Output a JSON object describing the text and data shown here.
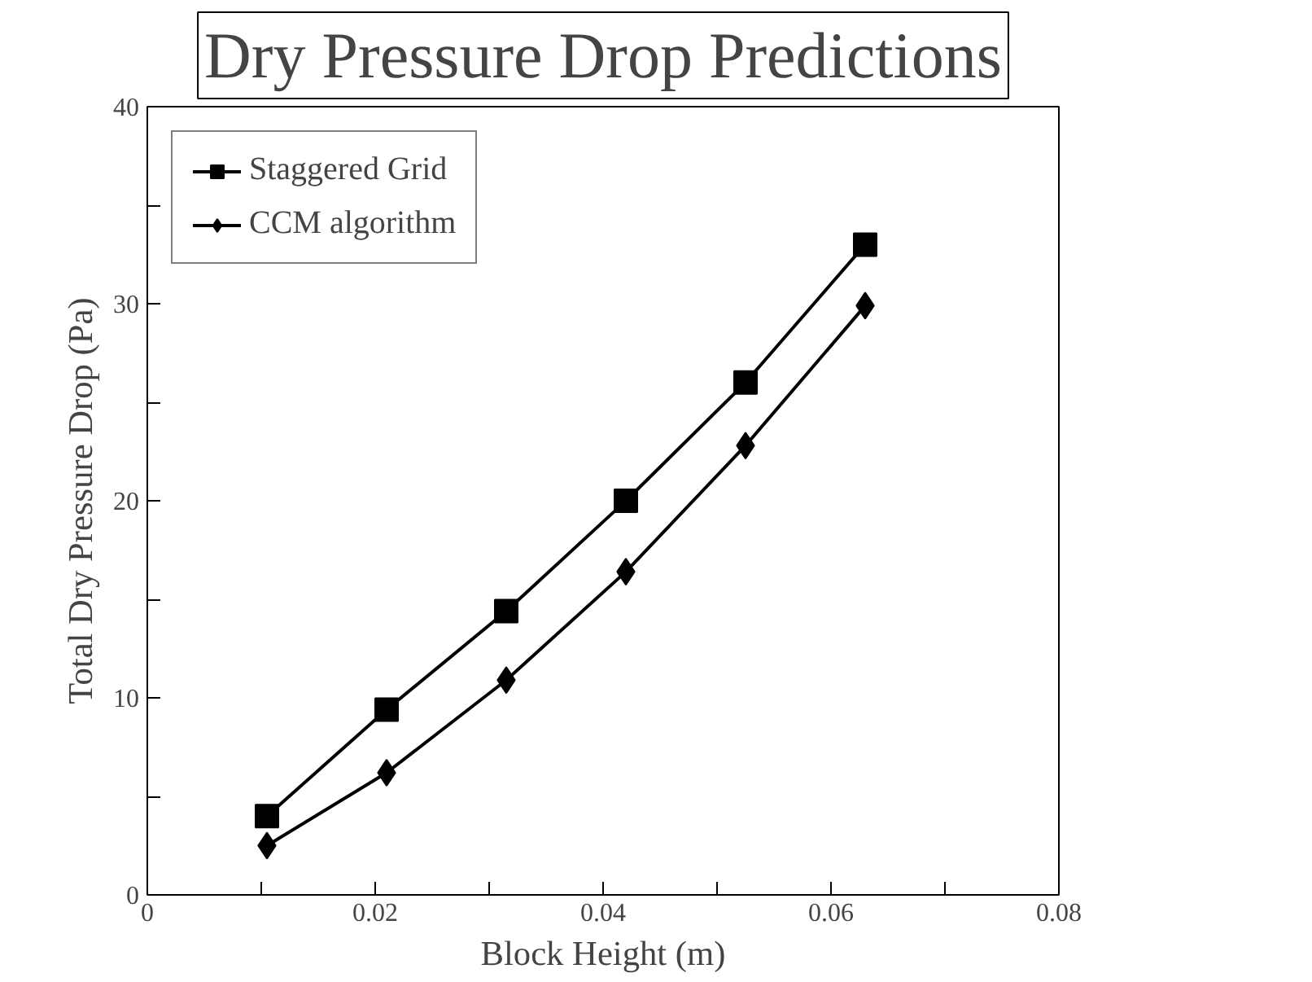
{
  "chart_data": {
    "type": "line",
    "title": "Dry Pressure Drop Predictions",
    "xlabel": "Block Height (m)",
    "ylabel": "Total Dry Pressure Drop (Pa)",
    "x": [
      0.0105,
      0.021,
      0.0315,
      0.042,
      0.0525,
      0.063
    ],
    "series": [
      {
        "name": "Staggered Grid",
        "color": "#000000",
        "marker": "square",
        "values": [
          4.0,
          9.4,
          14.4,
          20.0,
          26.0,
          33.0
        ]
      },
      {
        "name": "CCM algorithm",
        "color": "#000000",
        "marker": "diamond",
        "values": [
          2.5,
          6.2,
          10.9,
          16.4,
          22.8,
          29.9
        ]
      }
    ],
    "xlim": [
      0,
      0.08
    ],
    "xticks": [
      0,
      {
        "value": 0.01,
        "label": null
      },
      0.02,
      {
        "value": 0.03,
        "label": null
      },
      0.04,
      {
        "value": 0.05,
        "label": null
      },
      0.06,
      {
        "value": 0.07,
        "label": null
      },
      0.08
    ],
    "ylim": [
      0,
      40
    ],
    "yticks": [
      0,
      {
        "value": 5,
        "label": null
      },
      10,
      {
        "value": 15,
        "label": null
      },
      20,
      {
        "value": 25,
        "label": null
      },
      30,
      {
        "value": 35,
        "label": null
      },
      40
    ],
    "grid": false,
    "legend": "top left",
    "line_style": "solid"
  }
}
